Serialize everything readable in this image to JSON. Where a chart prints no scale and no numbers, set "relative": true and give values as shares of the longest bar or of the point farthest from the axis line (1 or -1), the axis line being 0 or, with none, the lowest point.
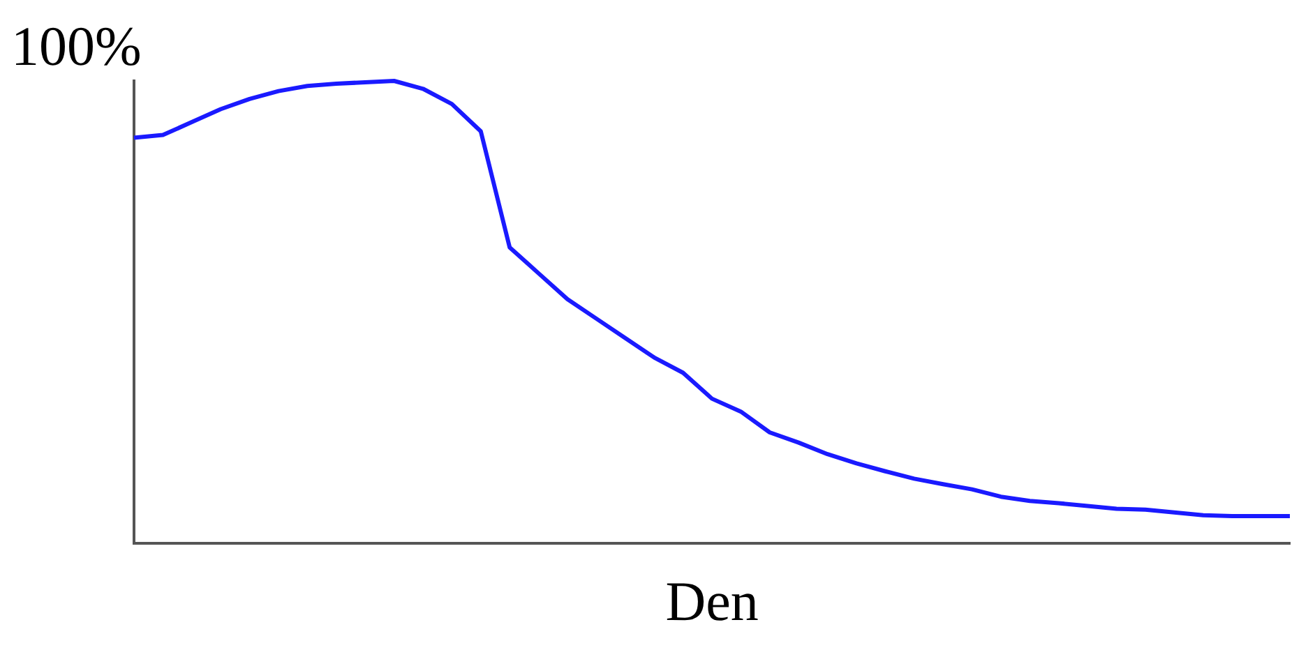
{
  "chart_data": {
    "type": "line",
    "relative": true,
    "ylabel": "100%",
    "xlabel": "Den",
    "categories": [
      null,
      null,
      null,
      null,
      null,
      null,
      null,
      null,
      null,
      null,
      null,
      null,
      null,
      null,
      null,
      null,
      null,
      null,
      null,
      null,
      null,
      null,
      null,
      null,
      null,
      null,
      null,
      null,
      null,
      null,
      null,
      null,
      null,
      null,
      null,
      null,
      null,
      null,
      null,
      null,
      null
    ],
    "series": [
      {
        "color": "#1a1aff",
        "values": [
          0.877,
          0.883,
          0.911,
          0.939,
          0.961,
          0.978,
          0.989,
          0.994,
          0.997,
          1.0,
          0.983,
          0.95,
          0.891,
          0.64,
          0.584,
          0.528,
          0.486,
          0.444,
          0.402,
          0.369,
          0.313,
          0.285,
          0.24,
          0.218,
          0.193,
          0.173,
          0.156,
          0.14,
          0.128,
          0.117,
          0.101,
          0.092,
          0.087,
          0.081,
          0.075,
          0.073,
          0.067,
          0.061,
          0.059,
          0.059,
          0.059
        ]
      }
    ],
    "grid": false,
    "legend": false,
    "marker": "none",
    "line_style": "solid"
  }
}
